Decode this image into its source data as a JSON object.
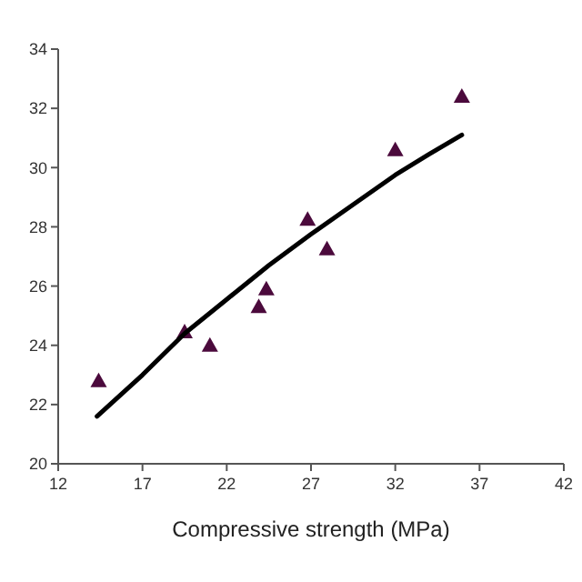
{
  "chart_data": {
    "type": "scatter",
    "xlabel": "Compressive strength (MPa)",
    "xlim": [
      12,
      42
    ],
    "xticks": [
      12,
      17,
      22,
      27,
      32,
      37,
      42
    ],
    "ylim": [
      20,
      34
    ],
    "yticks": [
      20,
      22,
      24,
      26,
      28,
      30,
      32,
      34
    ],
    "grid": false,
    "marker": "triangle",
    "series": [
      {
        "color": "#4b0a3c",
        "x": [
          14.4,
          19.5,
          21.0,
          23.9,
          24.35,
          26.8,
          27.95,
          32.0,
          35.95
        ],
        "values": [
          22.8,
          24.45,
          24.0,
          25.3,
          25.9,
          28.25,
          27.25,
          30.6,
          32.4
        ]
      },
      {
        "type": "line",
        "color": "#000000",
        "marker": "none",
        "x": [
          14.3,
          17,
          19.5,
          22,
          24.5,
          27,
          29.5,
          32,
          34,
          35.95
        ],
        "values": [
          21.6,
          23.0,
          24.4,
          25.55,
          26.7,
          27.75,
          28.75,
          29.75,
          30.45,
          31.1
        ]
      }
    ]
  }
}
